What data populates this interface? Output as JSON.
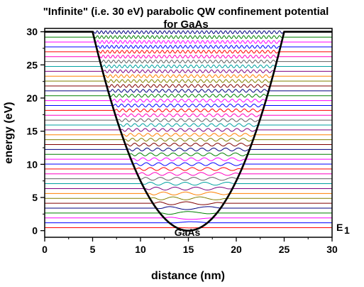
{
  "chart_data": {
    "type": "line",
    "title": "\"Infinite\" (i.e. 30 eV) parabolic QW confinement potential",
    "subtitle": "for GaAs",
    "xlabel": "distance (nm)",
    "ylabel": "energy (eV)",
    "xlim": [
      0,
      30
    ],
    "ylim": [
      -1,
      30.5
    ],
    "xticks": [
      0,
      5,
      10,
      15,
      20,
      25,
      30
    ],
    "yticks": [
      0,
      5,
      10,
      15,
      20,
      25,
      30
    ],
    "grid": false,
    "potential": {
      "color": "#000000",
      "x": [
        0,
        5,
        6,
        7,
        8,
        9,
        10,
        11,
        12,
        13,
        14,
        15,
        16,
        17,
        18,
        19,
        20,
        21,
        22,
        23,
        24,
        25,
        30
      ],
      "y": [
        30,
        30,
        24.3,
        19.2,
        14.7,
        10.8,
        7.5,
        4.8,
        2.7,
        1.2,
        0.3,
        0,
        0.3,
        1.2,
        2.7,
        4.8,
        7.5,
        10.8,
        14.7,
        19.2,
        24.3,
        30,
        30
      ]
    },
    "levels": {
      "count": 41,
      "first_energy": 0.45,
      "spacing": 0.737,
      "colors": [
        "#ff0000",
        "#0000ff",
        "#ff00ff",
        "#008000",
        "#000080",
        "#800000",
        "#808000",
        "#ff8000",
        "#800080",
        "#00a0a0",
        "#606060",
        "#ff00c0"
      ]
    },
    "annotations": {
      "material": "GaAs",
      "level_label": "E",
      "level_label_sub": "1",
      "level_label_color": "#ff0000"
    }
  }
}
